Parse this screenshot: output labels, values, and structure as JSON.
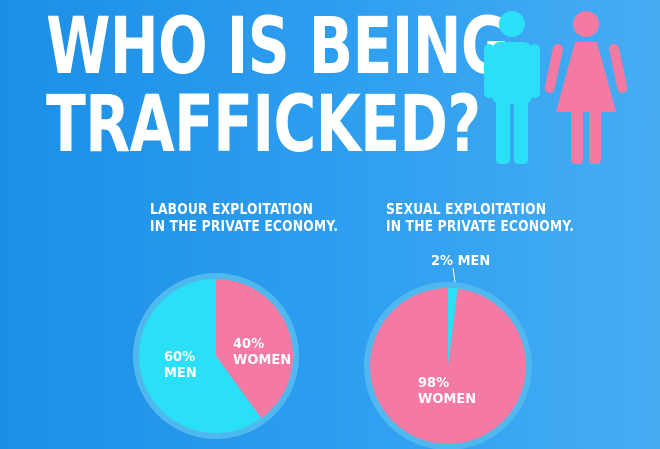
{
  "headline": {
    "line1": "WHO IS BEING",
    "line2": "TRAFFICKED?"
  },
  "icons": {
    "man": "man-icon",
    "woman": "woman-icon"
  },
  "colors": {
    "men": "#29e0f6",
    "women": "#f57aa3",
    "background": "#2a9aee"
  },
  "chart_data": [
    {
      "type": "pie",
      "title": "LABOUR EXPLOITATION\nIN THE PRIVATE ECONOMY.",
      "slices": [
        {
          "name": "MEN",
          "value": 60,
          "label_value": "60%",
          "label_name": "MEN",
          "color": "#29e0f6"
        },
        {
          "name": "WOMEN",
          "value": 40,
          "label_value": "40%",
          "label_name": "WOMEN",
          "color": "#f57aa3"
        }
      ]
    },
    {
      "type": "pie",
      "title": "SEXUAL EXPLOITATION\nIN THE PRIVATE ECONOMY.",
      "slices": [
        {
          "name": "MEN",
          "value": 2,
          "label_value": "2%",
          "label_name": "MEN",
          "color": "#29e0f6"
        },
        {
          "name": "WOMEN",
          "value": 98,
          "label_value": "98%",
          "label_name": "WOMEN",
          "color": "#f57aa3"
        }
      ]
    }
  ]
}
